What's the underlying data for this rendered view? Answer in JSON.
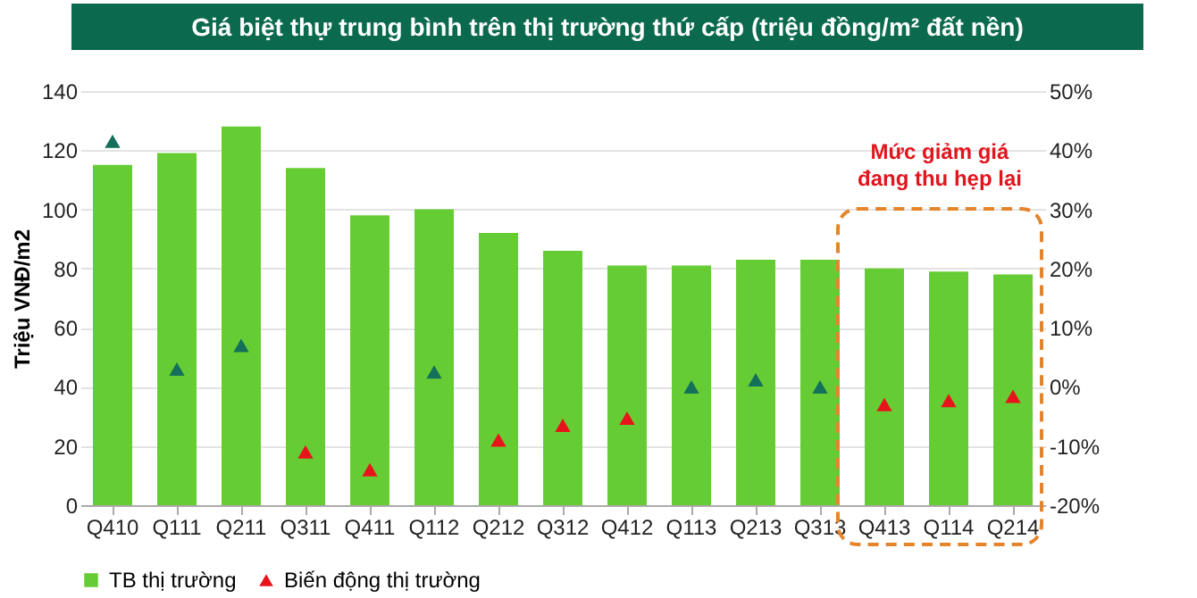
{
  "chart_data": {
    "type": "bar",
    "title": "Giá biệt thự trung bình  trên thị trường thứ cấp (triệu đồng/m² đất nền)",
    "ylabel": "Triệu VNĐ/m2",
    "categories": [
      "Q410",
      "Q111",
      "Q211",
      "Q311",
      "Q411",
      "Q112",
      "Q212",
      "Q312",
      "Q412",
      "Q113",
      "Q213",
      "Q313",
      "Q413",
      "Q114",
      "Q214"
    ],
    "series": [
      {
        "name": "TB thị trường",
        "color": "#66cc33",
        "values": [
          115,
          119,
          128,
          114,
          98,
          100,
          92,
          86,
          81,
          81,
          83,
          83,
          80,
          79,
          78
        ]
      },
      {
        "name": "Biến động thị trường",
        "type": "scatter",
        "axis": "y2",
        "marker": "triangle",
        "color": "#e8141b",
        "colors": [
          "#14705a",
          "#14705a",
          "#14705a",
          "#e8141b",
          "#e8141b",
          "#14705a",
          "#e8141b",
          "#e8141b",
          "#e8141b",
          "#14705a",
          "#14705a",
          "#14705a",
          "#e8141b",
          "#e8141b",
          "#e8141b"
        ],
        "values": [
          41.5,
          3,
          7,
          -11,
          -14,
          2.5,
          -9,
          -6.5,
          -5.3,
          0,
          1.2,
          0,
          -3,
          -2.3,
          -1.6
        ]
      }
    ],
    "ylim": [
      0,
      140
    ],
    "yticks": [
      0,
      20,
      40,
      60,
      80,
      100,
      120,
      140
    ],
    "y2lim": [
      -20,
      50
    ],
    "y2ticks": [
      {
        "value": -20,
        "label": "-20%"
      },
      {
        "value": -10,
        "label": "-10%"
      },
      {
        "value": 0,
        "label": "0%"
      },
      {
        "value": 10,
        "label": "10%"
      },
      {
        "value": 20,
        "label": "20%"
      },
      {
        "value": 30,
        "label": "30%"
      },
      {
        "value": 40,
        "label": "40%"
      },
      {
        "value": 50,
        "label": "50%"
      }
    ],
    "annotations": [
      "Mức giảm giá đang thu hẹp lại"
    ],
    "grid": "y",
    "legend": "bottom"
  }
}
